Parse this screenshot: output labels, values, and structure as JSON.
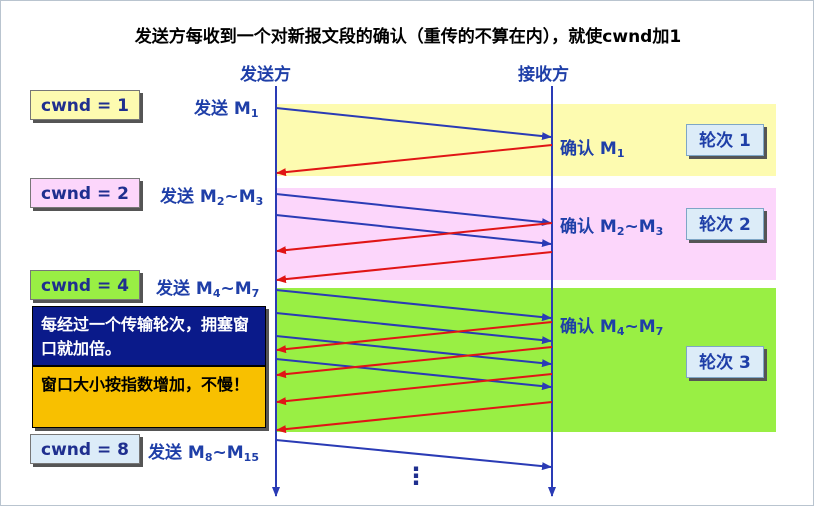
{
  "title": "发送方每收到一个对新报文段的确认（重传的不算在内），就使cwnd加1",
  "sender_label": "发送方",
  "receiver_label": "接收方",
  "cwnd": [
    "cwnd = 1",
    "cwnd = 2",
    "cwnd = 4",
    "cwnd = 8"
  ],
  "send": [
    {
      "text": "发送 M",
      "sub": "1",
      "text2": "",
      "sub2": ""
    },
    {
      "text": "发送 M",
      "sub": "2",
      "text2": "~M",
      "sub2": "3"
    },
    {
      "text": "发送 M",
      "sub": "4",
      "text2": "~M",
      "sub2": "7"
    },
    {
      "text": "发送 M",
      "sub": "8",
      "text2": "~M",
      "sub2": "15"
    }
  ],
  "ack": [
    {
      "text": "确认 M",
      "sub": "1",
      "text2": "",
      "sub2": ""
    },
    {
      "text": "确认 M",
      "sub": "2",
      "text2": "~M",
      "sub2": "3"
    },
    {
      "text": "确认 M",
      "sub": "4",
      "text2": "~M",
      "sub2": "7"
    }
  ],
  "rounds": [
    "轮次 1",
    "轮次 2",
    "轮次 3"
  ],
  "note1": "每经过一个传输轮次，拥塞窗口就加倍。",
  "note2": "窗口大小按指数增加，不慢！",
  "ellipsis": "⋮",
  "colors": {
    "band1": "#fdfbb0",
    "band2": "#fcd6fb",
    "band3": "#99ef44",
    "send_arrow": "#2a3bb5",
    "ack_arrow": "#e01515"
  }
}
